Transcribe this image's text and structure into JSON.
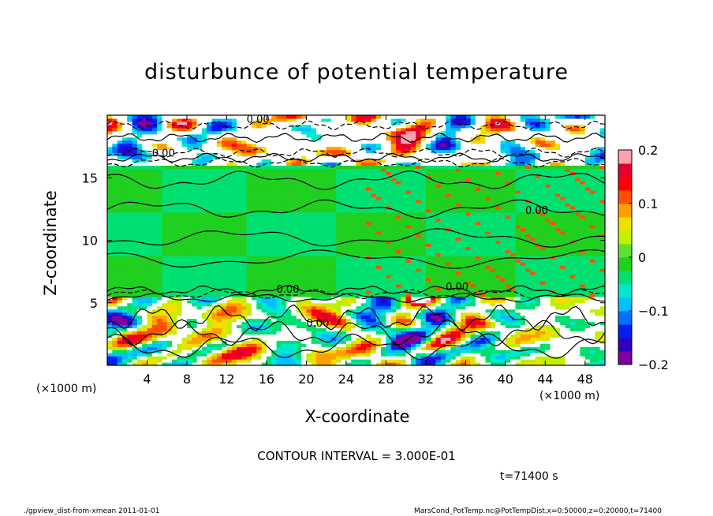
{
  "chart_data": {
    "type": "heatmap",
    "title": "disturbunce of potential temperature",
    "xlabel": "X-coordinate",
    "ylabel": "Z-coordinate",
    "x_unit": "(×1000 m)",
    "y_unit": "(×1000 m)",
    "xlim": [
      0,
      50
    ],
    "ylim": [
      0,
      20
    ],
    "x_ticks": [
      4,
      8,
      12,
      16,
      20,
      24,
      28,
      32,
      36,
      40,
      44,
      48
    ],
    "y_ticks": [
      5,
      10,
      15
    ],
    "colorbar": {
      "range": [
        -0.2,
        0.2
      ],
      "ticks": [
        {
          "value": 0.2,
          "label": "0.2"
        },
        {
          "value": 0.1,
          "label": "0.1"
        },
        {
          "value": 0.0,
          "label": "0"
        },
        {
          "value": -0.1,
          "label": "−0.1"
        },
        {
          "value": -0.2,
          "label": "−0.2"
        }
      ],
      "colors": [
        "#8000a0",
        "#3000c0",
        "#0020f0",
        "#0070ff",
        "#00c0ff",
        "#00e8d0",
        "#00e070",
        "#20d020",
        "#60e030",
        "#c0f000",
        "#f0e000",
        "#ffa000",
        "#ff5000",
        "#ff0000",
        "#e00030",
        "#ffa0b0"
      ]
    },
    "regions": [
      {
        "zmin": 0,
        "zmax": 5.6,
        "pattern": "turbulent",
        "range": [
          -0.2,
          0.2
        ]
      },
      {
        "zmin": 5.6,
        "zmax": 16,
        "pattern": "near-zero",
        "value": 0.0
      },
      {
        "zmin": 16,
        "zmax": 20,
        "pattern": "turbulent",
        "range": [
          -0.2,
          0.2
        ]
      }
    ],
    "contour_labels": [
      {
        "x": 14,
        "z": 19.4,
        "text": "0.00"
      },
      {
        "x": 4.5,
        "z": 16.7,
        "text": "0.00"
      },
      {
        "x": 42,
        "z": 12.1,
        "text": "0.00"
      },
      {
        "x": 34,
        "z": 6.0,
        "text": "0.00"
      },
      {
        "x": 17,
        "z": 5.8,
        "text": "0.00"
      },
      {
        "x": 20,
        "z": 3.1,
        "text": "0.00"
      }
    ]
  },
  "annotations": {
    "contour_interval": "CONTOUR INTERVAL = 3.000E-01",
    "time": "t=71400 s",
    "footer_left": "./gpview_dist-from-xmean  2011-01-01",
    "footer_right": "MarsCond_PotTemp.nc@PotTempDist,x=0:50000,z=0:20000,t=71400"
  }
}
